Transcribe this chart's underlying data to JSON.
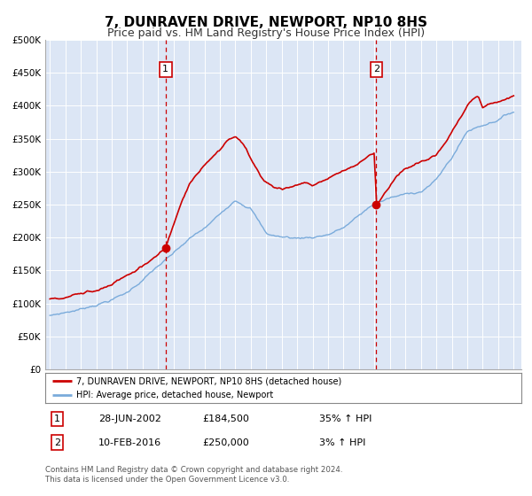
{
  "title": "7, DUNRAVEN DRIVE, NEWPORT, NP10 8HS",
  "subtitle": "Price paid vs. HM Land Registry's House Price Index (HPI)",
  "title_fontsize": 11,
  "subtitle_fontsize": 9,
  "background_color": "#ffffff",
  "plot_bg_color": "#dce6f5",
  "grid_color": "#ffffff",
  "red_line_color": "#cc0000",
  "blue_line_color": "#7aabdb",
  "ylim": [
    0,
    500000
  ],
  "yticks": [
    0,
    50000,
    100000,
    150000,
    200000,
    250000,
    300000,
    350000,
    400000,
    450000,
    500000
  ],
  "xlim_start": 1994.7,
  "xlim_end": 2025.5,
  "purchase1_year": 2002.49,
  "purchase1_price": 184500,
  "purchase1_label": "1",
  "purchase1_date": "28-JUN-2002",
  "purchase1_pct": "35% ↑ HPI",
  "purchase2_year": 2016.12,
  "purchase2_price": 250000,
  "purchase2_label": "2",
  "purchase2_date": "10-FEB-2016",
  "purchase2_pct": "3% ↑ HPI",
  "legend_label1": "7, DUNRAVEN DRIVE, NEWPORT, NP10 8HS (detached house)",
  "legend_label2": "HPI: Average price, detached house, Newport",
  "footnote": "Contains HM Land Registry data © Crown copyright and database right 2024.\nThis data is licensed under the Open Government Licence v3.0.",
  "table_row1": [
    "1",
    "28-JUN-2002",
    "£184,500",
    "35% ↑ HPI"
  ],
  "table_row2": [
    "2",
    "10-FEB-2016",
    "£250,000",
    "3% ↑ HPI"
  ]
}
